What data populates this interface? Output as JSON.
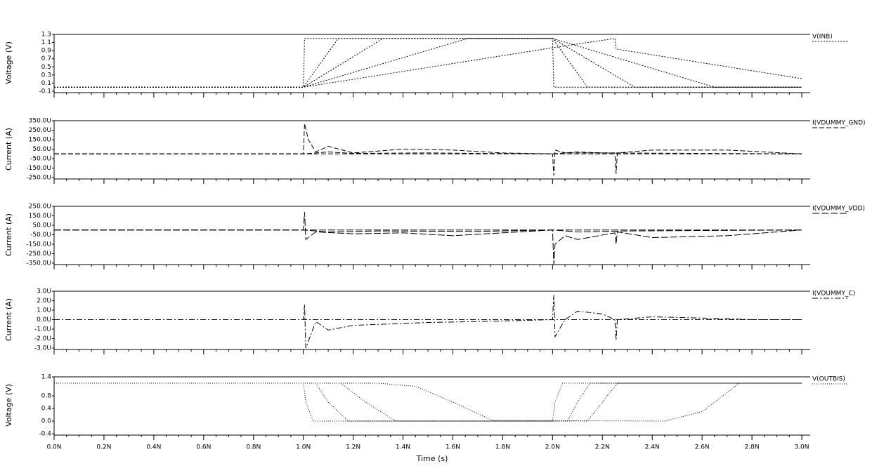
{
  "x_axis": {
    "label": "Time (s)",
    "xlim": [
      0,
      3e-09
    ],
    "xticks": [
      {
        "value": 0,
        "label": "0.0N"
      },
      {
        "value": 2e-10,
        "label": "0.2N"
      },
      {
        "value": 4e-10,
        "label": "0.4N"
      },
      {
        "value": 6e-10,
        "label": "0.6N"
      },
      {
        "value": 8e-10,
        "label": "0.8N"
      },
      {
        "value": 1e-09,
        "label": "1.0N"
      },
      {
        "value": 1.2e-09,
        "label": "1.2N"
      },
      {
        "value": 1.4e-09,
        "label": "1.4N"
      },
      {
        "value": 1.6e-09,
        "label": "1.6N"
      },
      {
        "value": 1.8e-09,
        "label": "1.8N"
      },
      {
        "value": 2e-09,
        "label": "2.0N"
      },
      {
        "value": 2.2e-09,
        "label": "2.2N"
      },
      {
        "value": 2.4e-09,
        "label": "2.4N"
      },
      {
        "value": 2.6e-09,
        "label": "2.6N"
      },
      {
        "value": 2.8e-09,
        "label": "2.8N"
      },
      {
        "value": 3e-09,
        "label": "3.0N"
      }
    ]
  },
  "chart_data": [
    {
      "type": "line",
      "y_label": "Voltage (V)",
      "ylim": [
        -0.1,
        1.3
      ],
      "yticks": [
        1.3,
        1.1,
        0.9,
        0.7,
        0.5,
        0.3,
        0.1,
        -0.1
      ],
      "series": [
        {
          "name": "V(INB)",
          "color": "#000000",
          "dash": "2,2",
          "curves": [
            {
              "x": [
                0,
                1e-09,
                1.005e-09,
                2e-09,
                2.005e-09,
                3e-09
              ],
              "values": [
                0,
                0,
                1.2,
                1.2,
                0,
                0
              ]
            },
            {
              "x": [
                0,
                1e-09,
                1.14e-09,
                2e-09,
                2.14e-09,
                3e-09
              ],
              "values": [
                0,
                0,
                1.2,
                1.2,
                0,
                0
              ]
            },
            {
              "x": [
                0,
                1e-09,
                1.32e-09,
                2e-09,
                2.33e-09,
                3e-09
              ],
              "values": [
                0,
                0,
                1.2,
                1.2,
                0,
                0
              ]
            },
            {
              "x": [
                0,
                1e-09,
                1.66e-09,
                2e-09,
                2.65e-09,
                3e-09
              ],
              "values": [
                0,
                0,
                1.2,
                1.2,
                0,
                0
              ]
            },
            {
              "x": [
                0,
                1e-09,
                2e-09,
                2.25e-09,
                2.255e-09,
                3e-09
              ],
              "values": [
                0,
                0,
                0.97,
                1.2,
                0.94,
                0.21
              ]
            }
          ]
        }
      ]
    },
    {
      "type": "line",
      "y_label": "Current (A)",
      "ylim": [
        -0.00025,
        0.00035
      ],
      "yticks": [
        {
          "value": 0.00035,
          "label": "350.0U"
        },
        {
          "value": 0.00025,
          "label": "250.0U"
        },
        {
          "value": 0.00015,
          "label": "150.0U"
        },
        {
          "value": 5e-05,
          "label": "50.0U"
        },
        {
          "value": -5e-05,
          "label": "-50.0U"
        },
        {
          "value": -0.00015,
          "label": "-150.0U"
        },
        {
          "value": -0.00025,
          "label": "-250.0U"
        }
      ],
      "series": [
        {
          "name": "I(VDUMMY_GND)",
          "color": "#000000",
          "dash": "7,3",
          "curves": [
            {
              "x": [
                0,
                3e-09
              ],
              "values": [
                0,
                0
              ]
            },
            {
              "x": [
                0,
                1e-09,
                1.005e-09,
                1.02e-09,
                1.05e-09,
                1.1e-09,
                1.2e-09,
                1.4e-09,
                1.6e-09,
                1.8e-09,
                2e-09,
                2.005e-09,
                2.01e-09,
                2.05e-09,
                2.25e-09,
                2.255e-09,
                2.26e-09,
                2.4e-09,
                2.7e-09,
                3e-09
              ],
              "values": [
                0,
                0,
                0.00032,
                0.00015,
                2e-05,
                8e-05,
                1e-05,
                5e-05,
                4e-05,
                1e-05,
                0,
                -0.00023,
                4e-05,
                1e-05,
                1e-05,
                -0.00021,
                1e-05,
                4e-05,
                4e-05,
                0
              ]
            },
            {
              "x": [
                0,
                1e-09,
                1.1e-09,
                1.2e-09,
                1.5e-09,
                1.7e-09,
                2e-09,
                2.1e-09,
                2.2e-09,
                3e-09
              ],
              "values": [
                0,
                0,
                2e-05,
                5e-06,
                1e-05,
                5e-06,
                0,
                2e-05,
                1e-05,
                0
              ]
            }
          ]
        }
      ]
    },
    {
      "type": "line",
      "y_label": "Current (A)",
      "ylim": [
        -0.00035,
        0.00025
      ],
      "yticks": [
        {
          "value": 0.00025,
          "label": "250.0U"
        },
        {
          "value": 0.00015,
          "label": "150.0U"
        },
        {
          "value": 5e-05,
          "label": "50.0U"
        },
        {
          "value": -5e-05,
          "label": "-50.0U"
        },
        {
          "value": -0.00015,
          "label": "-150.0U"
        },
        {
          "value": -0.00025,
          "label": "-250.0U"
        },
        {
          "value": -0.00035,
          "label": "-350.0U"
        }
      ],
      "series": [
        {
          "name": "I(VDUMMY_VDD)",
          "color": "#000000",
          "dash": "10,3",
          "curves": [
            {
              "x": [
                0,
                3e-09
              ],
              "values": [
                0,
                0
              ]
            },
            {
              "x": [
                0,
                1e-09,
                1.005e-09,
                1.01e-09,
                1.05e-09,
                1.2e-09,
                1.4e-09,
                1.6e-09,
                1.8e-09,
                2e-09,
                2.005e-09,
                2.01e-09,
                2.05e-09,
                2.1e-09,
                2.25e-09,
                2.255e-09,
                2.26e-09,
                2.4e-09,
                2.7e-09,
                3e-09
              ],
              "values": [
                0,
                0,
                0.00019,
                -0.0001,
                -2e-05,
                -4e-05,
                -3e-05,
                -6e-05,
                -3e-05,
                0,
                -0.00036,
                -0.00015,
                -6e-05,
                -0.0001,
                -3e-05,
                -0.00015,
                -2e-05,
                -8e-05,
                -6e-05,
                0
              ]
            },
            {
              "x": [
                0,
                1e-09,
                1.1e-09,
                1.3e-09,
                1.7e-09,
                2e-09,
                2.1e-09,
                2.3e-09,
                3e-09
              ],
              "values": [
                0,
                0,
                -2e-05,
                -1e-05,
                -1.5e-05,
                0,
                -2e-05,
                -1e-05,
                0
              ]
            }
          ]
        }
      ]
    },
    {
      "type": "line",
      "y_label": "Current (A)",
      "ylim": [
        -3e-06,
        3e-06
      ],
      "yticks": [
        {
          "value": 3e-06,
          "label": "3.0U"
        },
        {
          "value": 2e-06,
          "label": "2.0U"
        },
        {
          "value": 1e-06,
          "label": "1.0U"
        },
        {
          "value": 0,
          "label": "0.0U"
        },
        {
          "value": -1e-06,
          "label": "-1.0U"
        },
        {
          "value": -2e-06,
          "label": "-2.0U"
        },
        {
          "value": -3e-06,
          "label": "-3.0U"
        }
      ],
      "series": [
        {
          "name": "I(VDUMMY_C)",
          "color": "#000000",
          "dash": "8,3,2,3",
          "curves": [
            {
              "x": [
                0,
                3e-09
              ],
              "values": [
                0,
                0
              ]
            },
            {
              "x": [
                0,
                1e-09,
                1.005e-09,
                1.01e-09,
                1.05e-09,
                1.1e-09,
                1.2e-09,
                1.5e-09,
                1.7e-09,
                2e-09,
                2.005e-09,
                2.01e-09,
                2.05e-09,
                2.1e-09,
                2.2e-09,
                2.25e-09,
                2.255e-09,
                2.26e-09,
                2.4e-09,
                2.7e-09,
                2.8e-09,
                3e-09
              ],
              "values": [
                0,
                0,
                1.6e-06,
                -3e-06,
                -2e-07,
                -1.1e-06,
                -6e-07,
                -3e-07,
                -2e-07,
                0,
                2.6e-06,
                -1.8e-06,
                0,
                9e-07,
                6e-07,
                0,
                -2.2e-06,
                0,
                3e-07,
                1e-07,
                0,
                0
              ]
            }
          ]
        }
      ]
    },
    {
      "type": "line",
      "y_label": "Voltage (V)",
      "ylim": [
        -0.4,
        1.4
      ],
      "yticks": [
        1.4,
        0.8,
        0.4,
        {
          "value": 0,
          "label": "0.0"
        },
        -0.4
      ],
      "series": [
        {
          "name": "V(OUTBIS)",
          "color": "#000000",
          "dash": "1,2",
          "curves": [
            {
              "x": [
                0,
                1e-09,
                1.01e-09,
                1.04e-09,
                2e-09,
                2.01e-09,
                2.04e-09,
                3e-09
              ],
              "values": [
                1.2,
                1.2,
                0.6,
                0,
                0,
                0.6,
                1.2,
                1.2
              ]
            },
            {
              "x": [
                0,
                1.05e-09,
                1.1e-09,
                1.18e-09,
                2.06e-09,
                2.1e-09,
                2.15e-09,
                3e-09
              ],
              "values": [
                1.2,
                1.2,
                0.6,
                0,
                0,
                0.6,
                1.2,
                1.2
              ]
            },
            {
              "x": [
                0,
                1.15e-09,
                1.25e-09,
                1.37e-09,
                2.14e-09,
                2.2e-09,
                2.26e-09,
                3e-09
              ],
              "values": [
                1.2,
                1.2,
                0.6,
                0,
                0,
                0.6,
                1.2,
                1.2
              ]
            },
            {
              "x": [
                0,
                1.3e-09,
                1.45e-09,
                1.6e-09,
                1.76e-09,
                2.45e-09,
                2.6e-09,
                2.75e-09,
                3e-09
              ],
              "values": [
                1.2,
                1.2,
                1.1,
                0.6,
                0.02,
                0,
                0.3,
                1.2,
                1.2
              ]
            }
          ]
        }
      ]
    }
  ]
}
